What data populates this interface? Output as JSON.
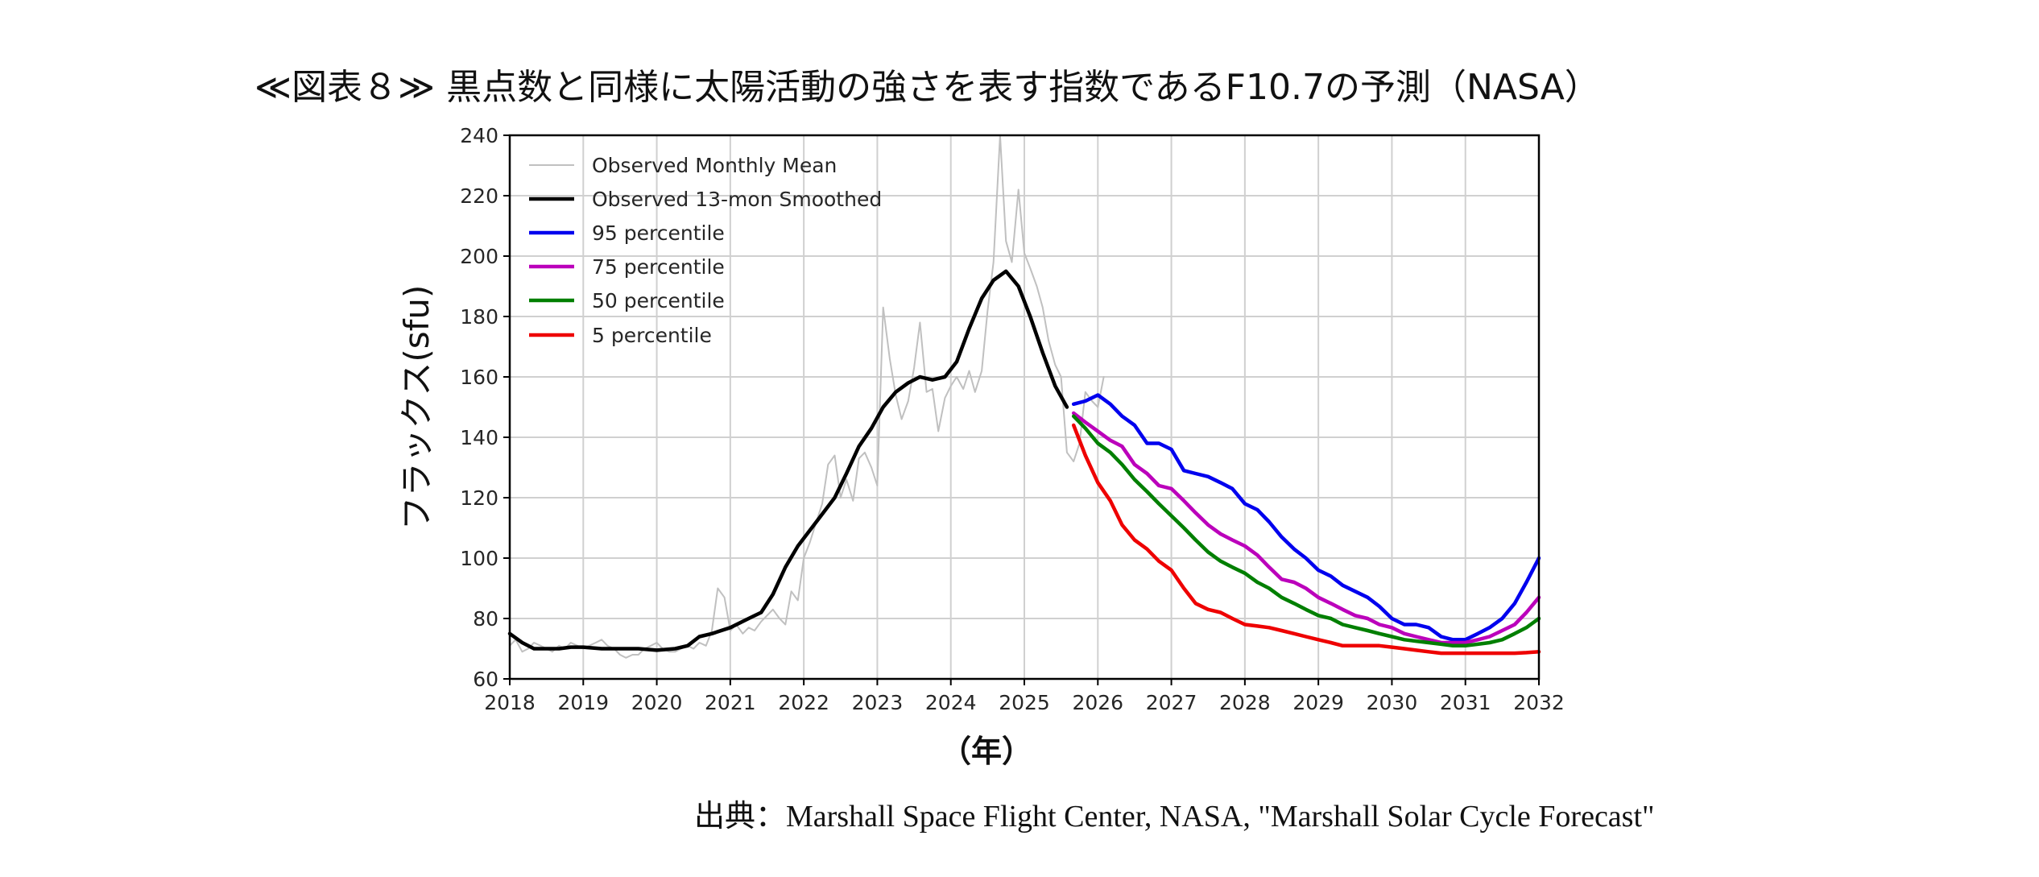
{
  "title": "≪図表８≫ 黒点数と同様に太陽活動の強さを表す指数であるF10.7の予測（NASA）",
  "source": "出典：Marshall Space Flight Center, NASA, \"Marshall Solar Cycle Forecast\"",
  "chart_data": {
    "type": "line",
    "title": "≪図表８≫ 黒点数と同様に太陽活動の強さを表す指数であるF10.7の予測（NASA）",
    "xlabel": "（年）",
    "ylabel": "フラックス(sfu)",
    "xlim": [
      2018,
      2032
    ],
    "ylim": [
      60,
      240
    ],
    "xticks": [
      2018,
      2019,
      2020,
      2021,
      2022,
      2023,
      2024,
      2025,
      2026,
      2027,
      2028,
      2029,
      2030,
      2031,
      2032
    ],
    "yticks": [
      60,
      80,
      100,
      120,
      140,
      160,
      180,
      200,
      220,
      240
    ],
    "grid": true,
    "legend_position": "top-left",
    "series": [
      {
        "name": "Observed Monthly Mean",
        "color": "#c0c0c0",
        "x": [
          2018.0,
          2018.08,
          2018.17,
          2018.25,
          2018.33,
          2018.42,
          2018.5,
          2018.58,
          2018.67,
          2018.75,
          2018.83,
          2018.92,
          2019.0,
          2019.08,
          2019.17,
          2019.25,
          2019.33,
          2019.42,
          2019.5,
          2019.58,
          2019.67,
          2019.75,
          2019.83,
          2019.92,
          2020.0,
          2020.08,
          2020.17,
          2020.25,
          2020.33,
          2020.42,
          2020.5,
          2020.58,
          2020.67,
          2020.75,
          2020.83,
          2020.92,
          2021.0,
          2021.08,
          2021.17,
          2021.25,
          2021.33,
          2021.42,
          2021.5,
          2021.58,
          2021.67,
          2021.75,
          2021.83,
          2021.92,
          2022.0,
          2022.08,
          2022.17,
          2022.25,
          2022.33,
          2022.42,
          2022.5,
          2022.58,
          2022.67,
          2022.75,
          2022.83,
          2022.92,
          2023.0,
          2023.08,
          2023.17,
          2023.25,
          2023.33,
          2023.42,
          2023.5,
          2023.58,
          2023.67,
          2023.75,
          2023.83,
          2023.92,
          2024.0,
          2024.08,
          2024.17,
          2024.25,
          2024.33,
          2024.42,
          2024.5,
          2024.58,
          2024.67,
          2024.75,
          2024.83,
          2024.92,
          2025.0,
          2025.08,
          2025.17,
          2025.25,
          2025.33,
          2025.42,
          2025.5,
          2025.58,
          2025.67,
          2025.75,
          2025.83,
          2025.92,
          2026.0,
          2026.08
        ],
        "values": [
          71,
          73,
          69,
          70,
          72,
          71,
          70,
          69,
          71,
          70,
          72,
          71,
          70,
          71,
          72,
          73,
          71,
          70,
          68,
          67,
          68,
          68,
          70,
          71,
          72,
          70,
          69,
          69,
          70,
          71,
          70,
          72,
          71,
          76,
          90,
          87,
          76,
          78,
          75,
          77,
          76,
          79,
          81,
          83,
          80,
          78,
          89,
          86,
          100,
          105,
          112,
          118,
          131,
          134,
          120,
          126,
          119,
          133,
          135,
          130,
          124,
          183,
          166,
          154,
          146,
          152,
          163,
          178,
          155,
          156,
          142,
          153,
          157,
          160,
          156,
          162,
          155,
          162,
          182,
          198,
          240,
          205,
          198,
          222,
          201,
          196,
          190,
          183,
          172,
          164,
          160,
          135,
          132,
          138,
          155,
          152,
          150,
          160
        ]
      },
      {
        "name": "Observed 13-mon Smoothed",
        "color": "#000000",
        "x": [
          2018.0,
          2018.17,
          2018.33,
          2018.5,
          2018.67,
          2018.83,
          2019.0,
          2019.25,
          2019.5,
          2019.75,
          2020.0,
          2020.25,
          2020.42,
          2020.58,
          2020.75,
          2021.0,
          2021.25,
          2021.42,
          2021.58,
          2021.75,
          2021.92,
          2022.17,
          2022.42,
          2022.58,
          2022.75,
          2022.92,
          2023.08,
          2023.25,
          2023.42,
          2023.58,
          2023.75,
          2023.92,
          2024.08,
          2024.25,
          2024.42,
          2024.58,
          2024.75,
          2024.92,
          2025.08,
          2025.25,
          2025.42,
          2025.58
        ],
        "values": [
          75,
          72,
          70,
          70,
          70,
          70.5,
          70.5,
          70,
          70,
          70,
          69.5,
          70,
          71,
          74,
          75,
          77,
          80,
          82,
          88,
          97,
          104,
          112,
          120,
          128,
          137,
          143,
          150,
          155,
          158,
          160,
          159,
          160,
          165,
          176,
          186,
          192,
          195,
          190,
          180,
          168,
          157,
          150
        ]
      },
      {
        "name": "95 percentile",
        "color": "#0000ee",
        "x": [
          2025.67,
          2025.83,
          2026.0,
          2026.17,
          2026.33,
          2026.5,
          2026.67,
          2026.83,
          2027.0,
          2027.17,
          2027.33,
          2027.5,
          2027.67,
          2027.83,
          2028.0,
          2028.17,
          2028.33,
          2028.5,
          2028.67,
          2028.83,
          2029.0,
          2029.17,
          2029.33,
          2029.5,
          2029.67,
          2029.83,
          2030.0,
          2030.17,
          2030.33,
          2030.5,
          2030.67,
          2030.83,
          2031.0,
          2031.17,
          2031.33,
          2031.5,
          2031.67,
          2031.83,
          2032.0
        ],
        "values": [
          151,
          152,
          154,
          151,
          147,
          144,
          138,
          138,
          136,
          129,
          128,
          127,
          125,
          123,
          118,
          116,
          112,
          107,
          103,
          100,
          96,
          94,
          91,
          89,
          87,
          84,
          80,
          78,
          78,
          77,
          74,
          73,
          73,
          75,
          77,
          80,
          85,
          92,
          100
        ]
      },
      {
        "name": "75 percentile",
        "color": "#bb00bb",
        "x": [
          2025.67,
          2025.83,
          2026.0,
          2026.17,
          2026.33,
          2026.5,
          2026.67,
          2026.83,
          2027.0,
          2027.17,
          2027.33,
          2027.5,
          2027.67,
          2027.83,
          2028.0,
          2028.17,
          2028.33,
          2028.5,
          2028.67,
          2028.83,
          2029.0,
          2029.17,
          2029.33,
          2029.5,
          2029.67,
          2029.83,
          2030.0,
          2030.17,
          2030.33,
          2030.5,
          2030.67,
          2030.83,
          2031.0,
          2031.17,
          2031.33,
          2031.5,
          2031.67,
          2031.83,
          2032.0
        ],
        "values": [
          148,
          145,
          142,
          139,
          137,
          131,
          128,
          124,
          123,
          119,
          115,
          111,
          108,
          106,
          104,
          101,
          97,
          93,
          92,
          90,
          87,
          85,
          83,
          81,
          80,
          78,
          77,
          75,
          74,
          73,
          72,
          72,
          72,
          73,
          74,
          76,
          78,
          82,
          87
        ]
      },
      {
        "name": "50 percentile",
        "color": "#007f00",
        "x": [
          2025.67,
          2025.83,
          2026.0,
          2026.17,
          2026.33,
          2026.5,
          2026.67,
          2026.83,
          2027.0,
          2027.17,
          2027.33,
          2027.5,
          2027.67,
          2027.83,
          2028.0,
          2028.17,
          2028.33,
          2028.5,
          2028.67,
          2028.83,
          2029.0,
          2029.17,
          2029.33,
          2029.5,
          2029.67,
          2029.83,
          2030.0,
          2030.17,
          2030.33,
          2030.5,
          2030.67,
          2030.83,
          2031.0,
          2031.17,
          2031.33,
          2031.5,
          2031.67,
          2031.83,
          2032.0
        ],
        "values": [
          147,
          143,
          138,
          135,
          131,
          126,
          122,
          118,
          114,
          110,
          106,
          102,
          99,
          97,
          95,
          92,
          90,
          87,
          85,
          83,
          81,
          80,
          78,
          77,
          76,
          75,
          74,
          73,
          72.5,
          72,
          71.5,
          71,
          71,
          71.5,
          72,
          73,
          75,
          77,
          80
        ]
      },
      {
        "name": "5 percentile",
        "color": "#ee0000",
        "x": [
          2025.67,
          2025.83,
          2026.0,
          2026.17,
          2026.33,
          2026.5,
          2026.67,
          2026.83,
          2027.0,
          2027.17,
          2027.33,
          2027.5,
          2027.67,
          2027.83,
          2028.0,
          2028.17,
          2028.33,
          2028.5,
          2028.67,
          2028.83,
          2029.0,
          2029.17,
          2029.33,
          2029.5,
          2029.67,
          2029.83,
          2030.0,
          2030.17,
          2030.33,
          2030.5,
          2030.67,
          2030.83,
          2031.0,
          2031.17,
          2031.33,
          2031.5,
          2031.67,
          2031.83,
          2032.0
        ],
        "values": [
          144,
          134,
          125,
          119,
          111,
          106,
          103,
          99,
          96,
          90,
          85,
          83,
          82,
          80,
          78,
          77.5,
          77,
          76,
          75,
          74,
          73,
          72,
          71,
          71,
          71,
          71,
          70.5,
          70,
          69.5,
          69,
          68.5,
          68.5,
          68.5,
          68.5,
          68.5,
          68.5,
          68.5,
          68.7,
          69
        ]
      }
    ]
  }
}
